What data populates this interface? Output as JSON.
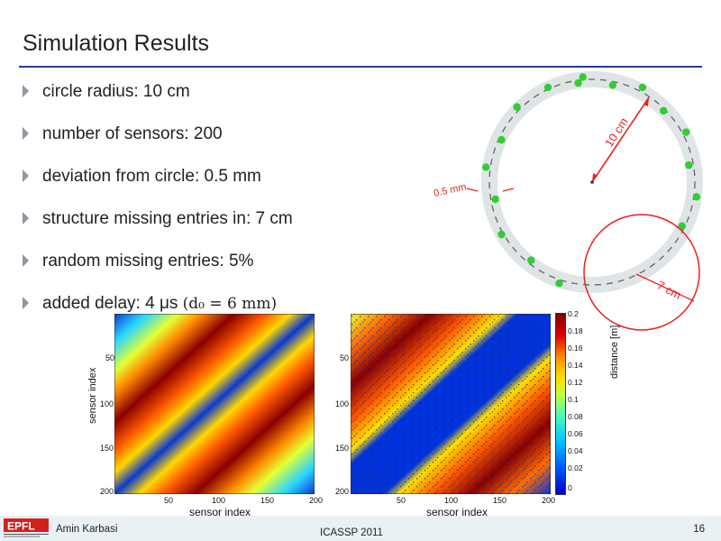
{
  "slide": {
    "title": "Simulation Results",
    "page_number": "16"
  },
  "bullets": [
    {
      "text": "circle radius: 10 cm"
    },
    {
      "text": "number of sensors: 200"
    },
    {
      "text": "deviation from circle: 0.5 mm"
    },
    {
      "text": "structure missing entries in: 7 cm"
    },
    {
      "text": "random missing entries: 5%"
    },
    {
      "text": "added delay: 4 μs",
      "math": "(d₀ = 6 mm)"
    }
  ],
  "diagram": {
    "radius_label": "10 cm",
    "deviation_label": "0.5 mm",
    "missing_label": "7 cm",
    "colors": {
      "sensor": "#33cc33",
      "ring": "#dfe4e6",
      "annotation": "#e8241f"
    }
  },
  "matrices": {
    "left": {
      "ylabel": "sensor index",
      "xlabel": "sensor index",
      "yticks": [
        "50",
        "100",
        "150",
        "200"
      ],
      "xticks": [
        "50",
        "100",
        "150",
        "200"
      ]
    },
    "right": {
      "xlabel": "sensor index",
      "yticks": [
        "50",
        "100",
        "150",
        "200"
      ],
      "xticks": [
        "50",
        "100",
        "150",
        "200"
      ]
    },
    "colorbar": {
      "label": "distance [m]",
      "ticks": [
        "0.2",
        "0.18",
        "0.16",
        "0.14",
        "0.12",
        "0.1",
        "0.08",
        "0.06",
        "0.04",
        "0.02",
        "0"
      ],
      "range": [
        0,
        0.2
      ]
    }
  },
  "footer": {
    "author": "Amin Karbasi",
    "venue": "ICASSP 2011",
    "logo_text": "EPFL"
  }
}
